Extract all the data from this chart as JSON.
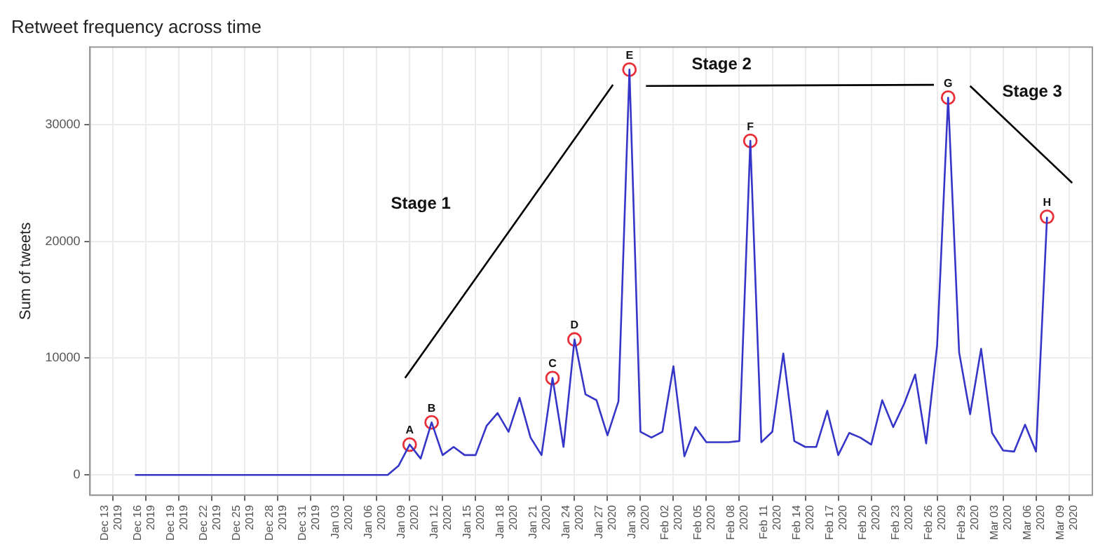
{
  "chart_data": {
    "type": "line",
    "title": "Retweet frequency across time",
    "ylabel": "Sum of tweets",
    "grid": true,
    "marker": "none",
    "line_style": "solid",
    "xlim": [
      "2019-12-10T22:00",
      "2020-03-11T03:00"
    ],
    "ylim": [
      -1740,
      36630
    ],
    "yticks": [
      0,
      10000,
      20000,
      30000
    ],
    "xticks": [
      {
        "value": "2019-12-13",
        "label": "Dec 13 2019"
      },
      {
        "value": "2019-12-16",
        "label": "Dec 16 2019"
      },
      {
        "value": "2019-12-19",
        "label": "Dec 19 2019"
      },
      {
        "value": "2019-12-22",
        "label": "Dec 22 2019"
      },
      {
        "value": "2019-12-25",
        "label": "Dec 25 2019"
      },
      {
        "value": "2019-12-28",
        "label": "Dec 28 2019"
      },
      {
        "value": "2019-12-31",
        "label": "Dec 31 2019"
      },
      {
        "value": "2020-01-03",
        "label": "Jan 03 2020"
      },
      {
        "value": "2020-01-06",
        "label": "Jan 06 2020"
      },
      {
        "value": "2020-01-09",
        "label": "Jan 09 2020"
      },
      {
        "value": "2020-01-12",
        "label": "Jan 12 2020"
      },
      {
        "value": "2020-01-15",
        "label": "Jan 15 2020"
      },
      {
        "value": "2020-01-18",
        "label": "Jan 18 2020"
      },
      {
        "value": "2020-01-21",
        "label": "Jan 21 2020"
      },
      {
        "value": "2020-01-24",
        "label": "Jan 24 2020"
      },
      {
        "value": "2020-01-27",
        "label": "Jan 27 2020"
      },
      {
        "value": "2020-01-30",
        "label": "Jan 30 2020"
      },
      {
        "value": "2020-02-02",
        "label": "Feb 02 2020"
      },
      {
        "value": "2020-02-05",
        "label": "Feb 05 2020"
      },
      {
        "value": "2020-02-08",
        "label": "Feb 08 2020"
      },
      {
        "value": "2020-02-11",
        "label": "Feb 11 2020"
      },
      {
        "value": "2020-02-14",
        "label": "Feb 14 2020"
      },
      {
        "value": "2020-02-17",
        "label": "Feb 17 2020"
      },
      {
        "value": "2020-02-20",
        "label": "Feb 20 2020"
      },
      {
        "value": "2020-02-23",
        "label": "Feb 23 2020"
      },
      {
        "value": "2020-02-26",
        "label": "Feb 26 2020"
      },
      {
        "value": "2020-02-29",
        "label": "Feb 29 2020"
      },
      {
        "value": "2020-03-03",
        "label": "Mar 03 2020"
      },
      {
        "value": "2020-03-06",
        "label": "Mar 06 2020"
      },
      {
        "value": "2020-03-09",
        "label": "Mar 09 2020"
      }
    ],
    "series": [
      {
        "type": "line",
        "color": "#3535c8",
        "x": [
          "2019-12-15",
          "2019-12-16",
          "2019-12-17",
          "2019-12-18",
          "2019-12-19",
          "2019-12-20",
          "2019-12-21",
          "2019-12-22",
          "2019-12-23",
          "2019-12-24",
          "2019-12-25",
          "2019-12-26",
          "2019-12-27",
          "2019-12-28",
          "2019-12-29",
          "2019-12-30",
          "2019-12-31",
          "2020-01-01",
          "2020-01-02",
          "2020-01-03",
          "2020-01-04",
          "2020-01-05",
          "2020-01-06",
          "2020-01-07",
          "2020-01-08",
          "2020-01-09",
          "2020-01-10",
          "2020-01-11",
          "2020-01-12",
          "2020-01-13",
          "2020-01-14",
          "2020-01-15",
          "2020-01-16",
          "2020-01-17",
          "2020-01-18",
          "2020-01-19",
          "2020-01-20",
          "2020-01-21",
          "2020-01-22",
          "2020-01-23",
          "2020-01-24",
          "2020-01-25",
          "2020-01-26",
          "2020-01-27",
          "2020-01-28",
          "2020-01-29",
          "2020-01-30",
          "2020-01-31",
          "2020-02-01",
          "2020-02-02",
          "2020-02-03",
          "2020-02-04",
          "2020-02-05",
          "2020-02-06",
          "2020-02-07",
          "2020-02-08",
          "2020-02-09",
          "2020-02-10",
          "2020-02-11",
          "2020-02-12",
          "2020-02-13",
          "2020-02-14",
          "2020-02-15",
          "2020-02-16",
          "2020-02-17",
          "2020-02-18",
          "2020-02-19",
          "2020-02-20",
          "2020-02-21",
          "2020-02-22",
          "2020-02-23",
          "2020-02-24",
          "2020-02-25",
          "2020-02-26",
          "2020-02-27",
          "2020-02-28",
          "2020-02-29",
          "2020-03-01",
          "2020-03-02",
          "2020-03-03",
          "2020-03-04",
          "2020-03-05",
          "2020-03-06",
          "2020-03-07"
        ],
        "values": [
          0,
          0,
          0,
          0,
          0,
          0,
          0,
          0,
          0,
          0,
          0,
          0,
          0,
          0,
          0,
          0,
          0,
          0,
          0,
          0,
          0,
          0,
          0,
          0,
          800,
          2600,
          1400,
          4500,
          1700,
          2400,
          1700,
          1700,
          4200,
          5300,
          3700,
          6600,
          3200,
          1700,
          8300,
          2400,
          11600,
          6900,
          6400,
          3400,
          6300,
          34700,
          3700,
          3200,
          3700,
          9300,
          1600,
          4100,
          2800,
          2800,
          2800,
          2900,
          28600,
          2800,
          3700,
          10400,
          2900,
          2400,
          2400,
          5500,
          1700,
          3600,
          3200,
          2600,
          6400,
          4100,
          6100,
          8600,
          2700,
          11100,
          32300,
          10500,
          5200,
          10800,
          3600,
          2100,
          2000,
          4300,
          2000,
          22100
        ]
      },
      {
        "type": "scatter",
        "marker": "circle",
        "color": "#e8303a",
        "x": [
          "2020-01-09",
          "2020-01-11",
          "2020-01-22",
          "2020-01-24",
          "2020-01-29",
          "2020-02-09",
          "2020-02-27",
          "2020-03-07"
        ],
        "values": [
          2600,
          4500,
          8300,
          11600,
          34700,
          28600,
          32300,
          22100
        ]
      },
      {
        "type": "line",
        "color": "#000000",
        "x": [
          "2020-01-08T14:00",
          "2020-01-27T12:00"
        ],
        "values": [
          8300,
          33400
        ]
      },
      {
        "type": "line",
        "color": "#000000",
        "x": [
          "2020-01-30T12:00",
          "2020-02-25T17:00"
        ],
        "values": [
          33300,
          33400
        ]
      },
      {
        "type": "line",
        "color": "#000000",
        "x": [
          "2020-02-29",
          "2020-03-09T07:00"
        ],
        "values": [
          33300,
          25000
        ]
      }
    ],
    "annotations": [
      {
        "text": "A",
        "x": "2020-01-09",
        "y": 2600
      },
      {
        "text": "B",
        "x": "2020-01-11",
        "y": 4500
      },
      {
        "text": "C",
        "x": "2020-01-22",
        "y": 8300
      },
      {
        "text": "D",
        "x": "2020-01-24",
        "y": 11600
      },
      {
        "text": "E",
        "x": "2020-01-29",
        "y": 34700
      },
      {
        "text": "F",
        "x": "2020-02-09",
        "y": 28600
      },
      {
        "text": "G",
        "x": "2020-02-27",
        "y": 32300
      },
      {
        "text": "H",
        "x": "2020-03-07",
        "y": 22100
      },
      "Stage 1",
      "Stage 2",
      "Stage 3"
    ]
  }
}
